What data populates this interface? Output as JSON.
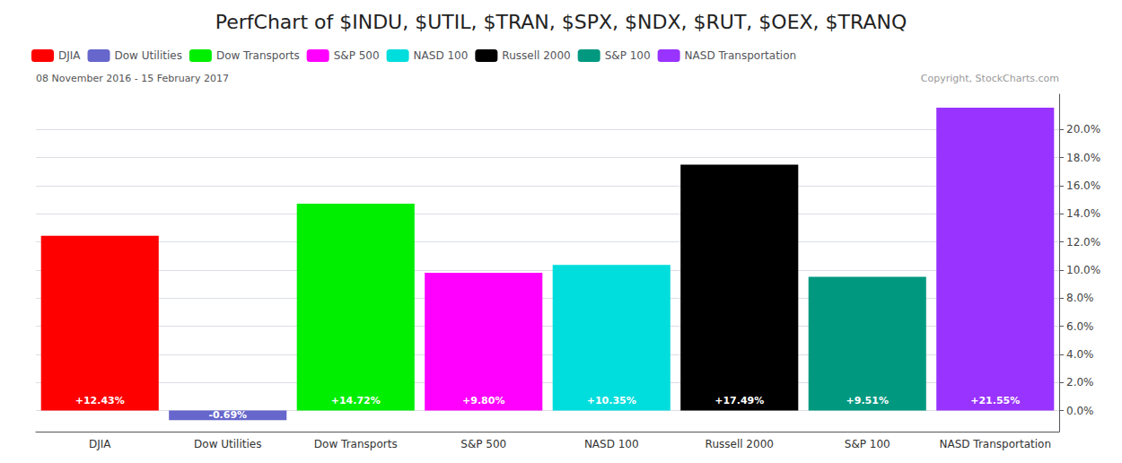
{
  "chart_data": {
    "type": "bar",
    "title": "PerfChart of $INDU, $UTIL, $TRAN, $SPX, $NDX, $RUT, $OEX, $TRANQ",
    "subtitle": "08 November 2016 - 15 February 2017",
    "annotations": [
      "Copyright, StockCharts.com"
    ],
    "categories": [
      "DJIA",
      "Dow Utilities",
      "Dow Transports",
      "S&P 500",
      "NASD 100",
      "Russell 2000",
      "S&P 100",
      "NASD Transportation"
    ],
    "values": [
      12.43,
      -0.69,
      14.72,
      9.8,
      10.35,
      17.49,
      9.51,
      21.55
    ],
    "value_labels": [
      "+12.43%",
      "-0.69%",
      "+14.72%",
      "+9.80%",
      "+10.35%",
      "+17.49%",
      "+9.51%",
      "+21.55%"
    ],
    "colors": [
      "#ff0000",
      "#6666cc",
      "#00ee00",
      "#ff00ff",
      "#00dddd",
      "#000000",
      "#009980",
      "#9933ff"
    ],
    "ylim": [
      -1.5,
      22.5
    ],
    "yticks": [
      {
        "value": 0.0,
        "label": "0.0%"
      },
      {
        "value": 2.0,
        "label": "2.0%"
      },
      {
        "value": 4.0,
        "label": "4.0%"
      },
      {
        "value": 6.0,
        "label": "6.0%"
      },
      {
        "value": 8.0,
        "label": "8.0%"
      },
      {
        "value": 10.0,
        "label": "10.0%"
      },
      {
        "value": 12.0,
        "label": "12.0%"
      },
      {
        "value": 14.0,
        "label": "14.0%"
      },
      {
        "value": 16.0,
        "label": "16.0%"
      },
      {
        "value": 18.0,
        "label": "18.0%"
      },
      {
        "value": 20.0,
        "label": "20.0%"
      }
    ],
    "grid": true,
    "legend": "top",
    "data_labels": true
  }
}
